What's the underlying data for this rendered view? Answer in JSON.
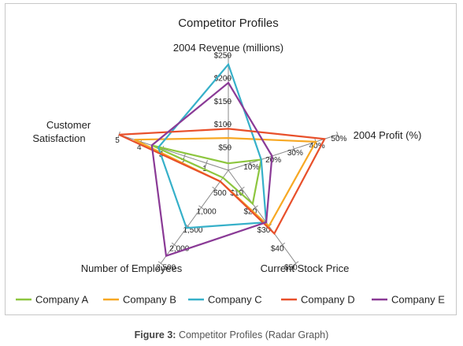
{
  "chart_data": {
    "type": "radar",
    "title": "Competitor Profiles",
    "axes": [
      {
        "label": "2004 Revenue (millions)",
        "range": [
          0,
          250
        ],
        "ticks": [
          "$250",
          "$200",
          "$150",
          "$100",
          "$50"
        ]
      },
      {
        "label": "2004 Profit (%)",
        "range": [
          0,
          50
        ],
        "ticks": [
          "50%",
          "40%",
          "30%",
          "20%",
          "10%"
        ]
      },
      {
        "label": "Current Stock Price",
        "range": [
          0,
          50
        ],
        "ticks": [
          "$50",
          "$40",
          "$30",
          "$20",
          "$10"
        ]
      },
      {
        "label": "Number of Employees",
        "range": [
          0,
          2500
        ],
        "ticks": [
          "2,500",
          "2,000",
          "1,500",
          "1,000",
          "500"
        ]
      },
      {
        "label": "Customer Satisfaction",
        "range": [
          0,
          5
        ],
        "ticks": [
          "5",
          "4",
          "3",
          "2",
          "1"
        ]
      }
    ],
    "series": [
      {
        "name": "Company A",
        "color": "#8dc63f",
        "values": [
          15,
          15,
          18,
          200,
          3.5
        ]
      },
      {
        "name": "Company B",
        "color": "#f7a823",
        "values": [
          70,
          40,
          30,
          300,
          4.3
        ]
      },
      {
        "name": "Company C",
        "color": "#36b0c9",
        "values": [
          230,
          15,
          28,
          1550,
          3.2
        ]
      },
      {
        "name": "Company D",
        "color": "#e8502b",
        "values": [
          90,
          44,
          34,
          300,
          5.0
        ]
      },
      {
        "name": "Company E",
        "color": "#8a3a96",
        "values": [
          190,
          20,
          28,
          2300,
          3.5
        ]
      }
    ],
    "legend_position": "bottom"
  },
  "caption": {
    "label": "Figure 3:",
    "text": "Competitor Profiles (Radar Graph)"
  }
}
